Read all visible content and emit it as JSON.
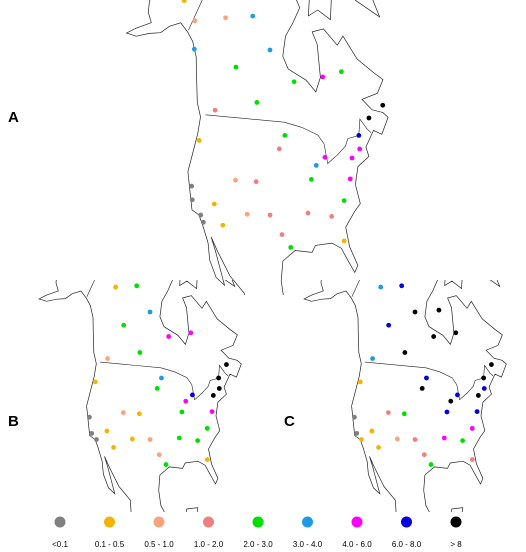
{
  "panels": [
    {
      "label": "A",
      "stations": [
        [
          -122,
          38,
          0
        ],
        [
          -121,
          36,
          0
        ],
        [
          -118,
          34,
          0
        ],
        [
          -117,
          33,
          0
        ],
        [
          -123,
          45,
          1
        ],
        [
          -115,
          36,
          1
        ],
        [
          -112,
          33,
          1
        ],
        [
          -106,
          35,
          2
        ],
        [
          -110,
          40,
          2
        ],
        [
          -104,
          40,
          3
        ],
        [
          -100,
          35,
          3
        ],
        [
          -97,
          32,
          3
        ],
        [
          -95,
          30,
          4
        ],
        [
          -90,
          35,
          3
        ],
        [
          -88,
          40,
          4
        ],
        [
          -86,
          42,
          5
        ],
        [
          -84,
          34,
          3
        ],
        [
          -80,
          36,
          4
        ],
        [
          -77,
          39,
          6
        ],
        [
          -75,
          42,
          6
        ],
        [
          -72,
          43,
          6
        ],
        [
          -71,
          45,
          7
        ],
        [
          -66,
          47,
          8
        ],
        [
          -60,
          48,
          8
        ],
        [
          -82,
          30,
          1
        ],
        [
          -95,
          47,
          4
        ],
        [
          -105,
          52,
          4
        ],
        [
          -115,
          57,
          4
        ],
        [
          -100,
          60,
          5
        ],
        [
          -90,
          55,
          4
        ],
        [
          -125,
          64,
          2
        ],
        [
          -140,
          62,
          2
        ],
        [
          -150,
          64,
          1
        ],
        [
          -135,
          58,
          5
        ],
        [
          -110,
          65,
          5
        ],
        [
          -78,
          55,
          6
        ],
        [
          -70,
          55,
          4
        ],
        [
          -83,
          43,
          6
        ],
        [
          -120,
          50,
          3
        ],
        [
          -97,
          45,
          3
        ]
      ]
    },
    {
      "label": "B",
      "stations": [
        [
          -122,
          38,
          0
        ],
        [
          -120,
          35,
          0
        ],
        [
          -118,
          34,
          0
        ],
        [
          -123,
          45,
          1
        ],
        [
          -115,
          36,
          1
        ],
        [
          -112,
          33,
          1
        ],
        [
          -106,
          35,
          1
        ],
        [
          -110,
          40,
          2
        ],
        [
          -104,
          40,
          1
        ],
        [
          -100,
          35,
          2
        ],
        [
          -97,
          32,
          2
        ],
        [
          -95,
          30,
          4
        ],
        [
          -90,
          35,
          4
        ],
        [
          -88,
          40,
          4
        ],
        [
          -86,
          42,
          6
        ],
        [
          -84,
          34,
          4
        ],
        [
          -80,
          36,
          4
        ],
        [
          -77,
          39,
          6
        ],
        [
          -75,
          42,
          8
        ],
        [
          -72,
          43,
          8
        ],
        [
          -71,
          45,
          8
        ],
        [
          -66,
          47,
          8
        ],
        [
          -82,
          30,
          1
        ],
        [
          -95,
          47,
          5
        ],
        [
          -105,
          52,
          4
        ],
        [
          -115,
          57,
          4
        ],
        [
          -100,
          60,
          5
        ],
        [
          -90,
          55,
          6
        ],
        [
          -125,
          64,
          1
        ],
        [
          -150,
          64,
          1
        ],
        [
          -110,
          65,
          4
        ],
        [
          -78,
          55,
          6
        ],
        [
          -83,
          43,
          7
        ],
        [
          -120,
          50,
          2
        ],
        [
          -97,
          45,
          4
        ]
      ]
    },
    {
      "label": "C",
      "stations": [
        [
          -122,
          38,
          0
        ],
        [
          -120,
          35,
          0
        ],
        [
          -118,
          34,
          1
        ],
        [
          -123,
          45,
          1
        ],
        [
          -115,
          36,
          1
        ],
        [
          -112,
          33,
          1
        ],
        [
          -106,
          35,
          2
        ],
        [
          -110,
          40,
          3
        ],
        [
          -104,
          40,
          4
        ],
        [
          -100,
          35,
          3
        ],
        [
          -97,
          32,
          3
        ],
        [
          -95,
          30,
          4
        ],
        [
          -90,
          35,
          6
        ],
        [
          -88,
          40,
          7
        ],
        [
          -86,
          42,
          8
        ],
        [
          -84,
          34,
          4
        ],
        [
          -80,
          36,
          6
        ],
        [
          -77,
          39,
          7
        ],
        [
          -75,
          42,
          8
        ],
        [
          -72,
          43,
          7
        ],
        [
          -71,
          45,
          8
        ],
        [
          -66,
          47,
          8
        ],
        [
          -82,
          30,
          3
        ],
        [
          -95,
          47,
          7
        ],
        [
          -105,
          52,
          8
        ],
        [
          -115,
          57,
          7
        ],
        [
          -100,
          60,
          8
        ],
        [
          -90,
          55,
          8
        ],
        [
          -125,
          64,
          5
        ],
        [
          -150,
          64,
          7
        ],
        [
          -110,
          65,
          7
        ],
        [
          -78,
          55,
          8
        ],
        [
          -83,
          43,
          7
        ],
        [
          -120,
          50,
          5
        ],
        [
          -97,
          45,
          8
        ],
        [
          -85,
          60,
          8
        ]
      ]
    }
  ],
  "legend": [
    {
      "label": "<0.1",
      "color": "#808080"
    },
    {
      "label": "0.1 - 0.5",
      "color": "#f5b400"
    },
    {
      "label": "0.5 - 1.0",
      "color": "#f8a57e"
    },
    {
      "label": "1.0 - 2.0",
      "color": "#f08080"
    },
    {
      "label": "2.0 - 3.0",
      "color": "#00e000"
    },
    {
      "label": "3.0 - 4.0",
      "color": "#1e9be8"
    },
    {
      "label": "4.0 - 6.0",
      "color": "#ff00ff"
    },
    {
      "label": "6.0 - 8.0",
      "color": "#0000e0"
    },
    {
      "label": "> 8",
      "color": "#000000"
    }
  ]
}
